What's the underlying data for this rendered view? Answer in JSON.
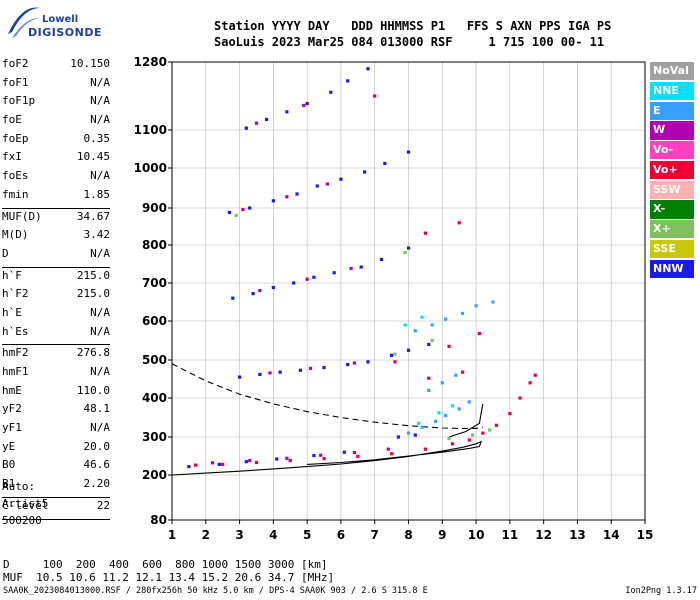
{
  "logo": {
    "brand": "Lowell",
    "product": "DIGISONDE"
  },
  "header": {
    "line1": "Station YYYY DAY   DDD HHMMSS P1   FFS S AXN PPS IGA PS",
    "line2": "SaoLuis 2023 Mar25 084 013000 RSF     1 715 100 00- 11"
  },
  "params": [
    {
      "name": "foF2",
      "value": "10.150"
    },
    {
      "name": "foF1",
      "value": "N/A"
    },
    {
      "name": "foF1p",
      "value": "N/A"
    },
    {
      "name": "foE",
      "value": "N/A"
    },
    {
      "name": "foEp",
      "value": "0.35"
    },
    {
      "name": "fxI",
      "value": "10.45"
    },
    {
      "name": "foEs",
      "value": "N/A"
    },
    {
      "name": "fmin",
      "value": "1.85"
    },
    {
      "sep": true
    },
    {
      "name": "MUF(D)",
      "value": "34.67"
    },
    {
      "name": "M(D)",
      "value": "3.42"
    },
    {
      "name": "D",
      "value": "N/A"
    },
    {
      "sep": true
    },
    {
      "name": "h`F",
      "value": "215.0"
    },
    {
      "name": "h`F2",
      "value": "215.0"
    },
    {
      "name": "h`E",
      "value": "N/A"
    },
    {
      "name": "h`Es",
      "value": "N/A"
    },
    {
      "sep": true
    },
    {
      "name": "hmF2",
      "value": "276.8"
    },
    {
      "name": "hmF1",
      "value": "N/A"
    },
    {
      "name": "hmE",
      "value": "110.0"
    },
    {
      "name": "yF2",
      "value": "48.1"
    },
    {
      "name": "yF1",
      "value": "N/A"
    },
    {
      "name": "yE",
      "value": "20.0"
    },
    {
      "name": "B0",
      "value": "46.6"
    },
    {
      "name": "B1",
      "value": "2.20"
    },
    {
      "sep": true
    },
    {
      "name": "C-level",
      "value": "22"
    },
    {
      "sep": true
    }
  ],
  "auto": {
    "label": "Auto:",
    "artist": "Artist5",
    "score": "500200"
  },
  "legend": [
    {
      "label": "NoVal",
      "color": "#a0a0a0"
    },
    {
      "label": "NNE",
      "color": "#00e0ff"
    },
    {
      "label": "E",
      "color": "#3aa0ff"
    },
    {
      "label": "W",
      "color": "#b000b0"
    },
    {
      "label": "Vo-",
      "color": "#ff40c0"
    },
    {
      "label": "Vo+",
      "color": "#ee0033"
    },
    {
      "label": "SSW",
      "color": "#ffb0b0"
    },
    {
      "label": "X-",
      "color": "#008000"
    },
    {
      "label": "X+",
      "color": "#80c060"
    },
    {
      "label": "SSE",
      "color": "#c8c800"
    },
    {
      "label": "NNW",
      "color": "#1a1ae6"
    }
  ],
  "footer": {
    "distance_row": "D     100  200  400  600  800 1000 1500 3000 [km]",
    "muf_row": "MUF  10.5 10.6 11.2 12.1 13.4 15.2 20.6 34.7 [MHz]",
    "file_info": "SAA0K_2023084013000.RSF / 280fx256h 50 kHz 5.0 km / DPS-4 SAA0K 903 / 2.6 S 315.8 E",
    "version": "Ion2Png 1.3.17"
  },
  "chart_data": {
    "type": "scatter",
    "title": "",
    "xlabel": "",
    "ylabel": "",
    "xlim": [
      1,
      15
    ],
    "ylim": [
      80,
      1280
    ],
    "x_ticks": [
      1,
      2,
      3,
      4,
      5,
      6,
      7,
      8,
      9,
      10,
      11,
      12,
      13,
      14,
      15
    ],
    "y_ticks": [
      80,
      200,
      300,
      400,
      500,
      600,
      700,
      800,
      900,
      1000,
      1100,
      1280
    ],
    "grid": true,
    "series": [
      {
        "name": "Vo+",
        "color": "#ee0033",
        "points": [
          [
            1.7,
            226
          ],
          [
            2.5,
            228
          ],
          [
            3.5,
            233
          ],
          [
            4.5,
            238
          ],
          [
            5.5,
            243
          ],
          [
            6.5,
            249
          ],
          [
            7.5,
            256
          ],
          [
            8.5,
            268
          ],
          [
            9.3,
            282
          ],
          [
            9.8,
            292
          ],
          [
            10.2,
            310
          ],
          [
            10.6,
            330
          ],
          [
            11.0,
            360
          ],
          [
            11.3,
            400
          ],
          [
            11.6,
            440
          ],
          [
            11.75,
            460
          ],
          [
            9.6,
            468
          ],
          [
            8.6,
            452
          ],
          [
            7.6,
            495
          ],
          [
            9.2,
            535
          ],
          [
            10.1,
            568
          ],
          [
            9.5,
            860
          ],
          [
            8.5,
            832
          ],
          [
            7.0,
            1190
          ]
        ]
      },
      {
        "name": "NNW",
        "color": "#1a1ae6",
        "points": [
          [
            1.5,
            222
          ],
          [
            2.4,
            228
          ],
          [
            3.2,
            235
          ],
          [
            4.1,
            242
          ],
          [
            5.2,
            251
          ],
          [
            6.1,
            260
          ],
          [
            7.7,
            300
          ],
          [
            8.2,
            305
          ],
          [
            3.0,
            455
          ],
          [
            3.6,
            462
          ],
          [
            4.2,
            468
          ],
          [
            4.8,
            473
          ],
          [
            5.5,
            480
          ],
          [
            6.2,
            488
          ],
          [
            6.8,
            495
          ],
          [
            7.5,
            512
          ],
          [
            8.0,
            525
          ],
          [
            8.6,
            540
          ],
          [
            2.8,
            660
          ],
          [
            3.4,
            672
          ],
          [
            4.0,
            688
          ],
          [
            4.6,
            700
          ],
          [
            5.2,
            715
          ],
          [
            5.8,
            727
          ],
          [
            6.6,
            742
          ],
          [
            7.2,
            762
          ],
          [
            8.0,
            792
          ],
          [
            2.7,
            888
          ],
          [
            3.3,
            900
          ],
          [
            4.0,
            918
          ],
          [
            4.7,
            935
          ],
          [
            5.3,
            955
          ],
          [
            6.0,
            972
          ],
          [
            6.7,
            990
          ],
          [
            7.3,
            1012
          ],
          [
            8.0,
            1042
          ],
          [
            3.2,
            1105
          ],
          [
            3.8,
            1128
          ],
          [
            4.4,
            1148
          ],
          [
            5.0,
            1170
          ],
          [
            5.7,
            1200
          ],
          [
            6.2,
            1230
          ],
          [
            6.8,
            1262
          ]
        ]
      },
      {
        "name": "E",
        "color": "#3aa0ff",
        "points": [
          [
            8.0,
            310
          ],
          [
            8.4,
            325
          ],
          [
            8.8,
            340
          ],
          [
            9.1,
            355
          ],
          [
            9.5,
            372
          ],
          [
            9.8,
            390
          ],
          [
            8.6,
            420
          ],
          [
            9.0,
            440
          ],
          [
            9.4,
            460
          ],
          [
            8.2,
            575
          ],
          [
            8.7,
            590
          ],
          [
            9.1,
            605
          ],
          [
            9.6,
            620
          ],
          [
            10.0,
            640
          ],
          [
            10.5,
            650
          ]
        ]
      },
      {
        "name": "W",
        "color": "#b000b0",
        "points": [
          [
            2.2,
            232
          ],
          [
            3.3,
            238
          ],
          [
            4.4,
            244
          ],
          [
            5.4,
            252
          ],
          [
            6.4,
            259
          ],
          [
            7.4,
            268
          ],
          [
            3.9,
            466
          ],
          [
            5.1,
            478
          ],
          [
            6.4,
            492
          ],
          [
            3.6,
            680
          ],
          [
            5.0,
            710
          ],
          [
            6.3,
            738
          ],
          [
            3.1,
            896
          ],
          [
            4.4,
            928
          ],
          [
            5.6,
            960
          ],
          [
            3.5,
            1118
          ],
          [
            4.9,
            1165
          ]
        ]
      },
      {
        "name": "X+",
        "color": "#80c060",
        "points": [
          [
            9.2,
            296
          ],
          [
            9.9,
            305
          ],
          [
            10.4,
            318
          ],
          [
            7.6,
            515
          ],
          [
            8.7,
            550
          ],
          [
            2.9,
            880
          ],
          [
            7.9,
            780
          ]
        ]
      },
      {
        "name": "NNE",
        "color": "#00e0ff",
        "points": [
          [
            8.3,
            335
          ],
          [
            8.9,
            362
          ],
          [
            9.3,
            380
          ],
          [
            7.9,
            590
          ],
          [
            8.4,
            610
          ]
        ]
      }
    ],
    "lines": [
      {
        "name": "profile",
        "style": "solid",
        "color": "#000000",
        "points": [
          [
            1.0,
            200
          ],
          [
            2.0,
            205
          ],
          [
            3.0,
            210
          ],
          [
            4.0,
            216
          ],
          [
            5.0,
            222
          ],
          [
            6.0,
            229
          ],
          [
            7.0,
            238
          ],
          [
            8.0,
            249
          ],
          [
            9.0,
            263
          ],
          [
            9.6,
            273
          ],
          [
            10.0,
            282
          ],
          [
            10.15,
            288
          ],
          [
            10.1,
            275
          ],
          [
            9.8,
            270
          ],
          [
            9.0,
            260
          ],
          [
            8.0,
            250
          ],
          [
            7.0,
            240
          ],
          [
            6.0,
            233
          ],
          [
            5.0,
            228
          ]
        ]
      },
      {
        "name": "profile-upper",
        "style": "solid",
        "color": "#000000",
        "points": [
          [
            9.2,
            300
          ],
          [
            9.7,
            314
          ],
          [
            10.1,
            335
          ],
          [
            10.2,
            385
          ]
        ]
      },
      {
        "name": "dashed-curve",
        "style": "dashed",
        "color": "#000000",
        "points": [
          [
            1.0,
            490
          ],
          [
            2.0,
            445
          ],
          [
            3.0,
            410
          ],
          [
            4.0,
            385
          ],
          [
            5.0,
            365
          ],
          [
            6.0,
            350
          ],
          [
            7.0,
            338
          ],
          [
            8.0,
            329
          ],
          [
            9.0,
            323
          ],
          [
            9.5,
            322
          ],
          [
            10.0,
            322
          ],
          [
            10.2,
            325
          ]
        ]
      }
    ]
  }
}
